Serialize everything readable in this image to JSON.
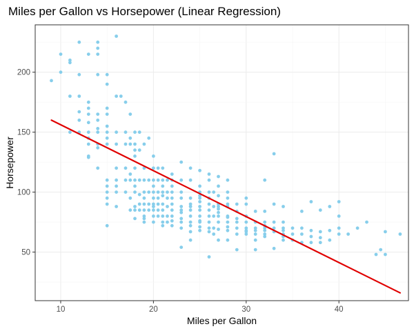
{
  "chart_data": {
    "type": "scatter",
    "title": "Miles per Gallon vs Horsepower (Linear Regression)",
    "xlabel": "Miles per Gallon",
    "ylabel": "Horsepower",
    "xlim": [
      7.25,
      47.5
    ],
    "ylim": [
      9.5,
      239.5
    ],
    "x_ticks": [
      10,
      20,
      30,
      40
    ],
    "y_ticks": [
      50,
      100,
      150,
      200
    ],
    "grid": true,
    "point_color": "#87CEEB",
    "line_color": "#E00000",
    "regression_line": {
      "x": [
        9,
        46.6
      ],
      "y": [
        160,
        16
      ]
    },
    "points": [
      [
        9,
        193
      ],
      [
        10,
        215
      ],
      [
        10,
        200
      ],
      [
        11,
        210
      ],
      [
        11,
        208
      ],
      [
        11,
        180
      ],
      [
        11,
        150
      ],
      [
        12,
        225
      ],
      [
        12,
        198
      ],
      [
        12,
        180
      ],
      [
        12,
        167
      ],
      [
        12,
        160
      ],
      [
        12,
        150
      ],
      [
        13,
        215
      ],
      [
        13,
        175
      ],
      [
        13,
        170
      ],
      [
        13,
        165
      ],
      [
        13,
        158
      ],
      [
        13,
        150
      ],
      [
        13,
        145
      ],
      [
        13,
        140
      ],
      [
        13,
        130
      ],
      [
        13,
        129
      ],
      [
        14,
        225
      ],
      [
        14,
        220
      ],
      [
        14,
        215
      ],
      [
        14,
        198
      ],
      [
        14,
        165
      ],
      [
        14,
        160
      ],
      [
        14,
        153
      ],
      [
        14,
        150
      ],
      [
        14,
        140
      ],
      [
        14,
        137
      ],
      [
        14,
        120
      ],
      [
        15,
        198
      ],
      [
        15,
        190
      ],
      [
        15,
        170
      ],
      [
        15,
        165
      ],
      [
        15,
        155
      ],
      [
        15,
        150
      ],
      [
        15,
        145
      ],
      [
        15,
        140
      ],
      [
        15,
        110
      ],
      [
        15,
        105
      ],
      [
        15,
        100
      ],
      [
        15,
        95
      ],
      [
        15,
        90
      ],
      [
        15,
        72
      ],
      [
        16,
        230
      ],
      [
        16,
        180
      ],
      [
        16,
        150
      ],
      [
        16,
        140
      ],
      [
        16,
        120
      ],
      [
        16,
        105
      ],
      [
        16,
        100
      ],
      [
        16,
        88
      ],
      [
        16,
        110
      ],
      [
        16.5,
        180
      ],
      [
        17,
        175
      ],
      [
        17,
        150
      ],
      [
        17,
        140
      ],
      [
        17,
        120
      ],
      [
        17,
        110
      ],
      [
        17,
        100
      ],
      [
        17.5,
        165
      ],
      [
        17.5,
        145
      ],
      [
        17.5,
        140
      ],
      [
        17.5,
        115
      ],
      [
        17.5,
        110
      ],
      [
        17.5,
        95
      ],
      [
        17.5,
        85
      ],
      [
        18,
        150
      ],
      [
        18,
        140
      ],
      [
        18,
        135
      ],
      [
        18,
        130
      ],
      [
        18,
        120
      ],
      [
        18,
        110
      ],
      [
        18,
        105
      ],
      [
        18,
        100
      ],
      [
        18,
        88
      ],
      [
        18,
        85
      ],
      [
        18,
        78
      ],
      [
        18.5,
        150
      ],
      [
        18.5,
        135
      ],
      [
        18.5,
        110
      ],
      [
        18.5,
        98
      ],
      [
        18.5,
        90
      ],
      [
        18.5,
        85
      ],
      [
        19,
        140
      ],
      [
        19,
        120
      ],
      [
        19,
        110
      ],
      [
        19,
        100
      ],
      [
        19,
        95
      ],
      [
        19,
        90
      ],
      [
        19,
        85
      ],
      [
        19,
        80
      ],
      [
        19,
        78
      ],
      [
        19,
        75
      ],
      [
        19.5,
        145
      ],
      [
        19.5,
        110
      ],
      [
        19.5,
        100
      ],
      [
        19.5,
        90
      ],
      [
        19.5,
        85
      ],
      [
        20,
        130
      ],
      [
        20,
        120
      ],
      [
        20,
        110
      ],
      [
        20,
        105
      ],
      [
        20,
        100
      ],
      [
        20,
        95
      ],
      [
        20,
        90
      ],
      [
        20,
        88
      ],
      [
        20,
        85
      ],
      [
        20,
        80
      ],
      [
        20,
        75
      ],
      [
        20.5,
        120
      ],
      [
        20.5,
        110
      ],
      [
        20.5,
        100
      ],
      [
        20.5,
        95
      ],
      [
        20.5,
        90
      ],
      [
        20.5,
        85
      ],
      [
        20.5,
        80
      ],
      [
        21,
        120
      ],
      [
        21,
        110
      ],
      [
        21,
        105
      ],
      [
        21,
        100
      ],
      [
        21,
        97
      ],
      [
        21,
        90
      ],
      [
        21,
        85
      ],
      [
        21,
        80
      ],
      [
        21,
        75
      ],
      [
        21,
        72
      ],
      [
        21.5,
        110
      ],
      [
        21.5,
        100
      ],
      [
        21.5,
        95
      ],
      [
        21.5,
        88
      ],
      [
        21.5,
        80
      ],
      [
        21.5,
        75
      ],
      [
        22,
        115
      ],
      [
        22,
        110
      ],
      [
        22,
        105
      ],
      [
        22,
        100
      ],
      [
        22,
        95
      ],
      [
        22,
        90
      ],
      [
        22,
        85
      ],
      [
        22,
        80
      ],
      [
        22,
        76
      ],
      [
        22,
        72
      ],
      [
        23,
        125
      ],
      [
        23,
        110
      ],
      [
        23,
        100
      ],
      [
        23,
        95
      ],
      [
        23,
        88
      ],
      [
        23,
        85
      ],
      [
        23,
        83
      ],
      [
        23,
        78
      ],
      [
        23,
        75
      ],
      [
        23,
        70
      ],
      [
        23,
        54
      ],
      [
        24,
        120
      ],
      [
        24,
        110
      ],
      [
        24,
        95
      ],
      [
        24,
        90
      ],
      [
        24,
        88
      ],
      [
        24,
        85
      ],
      [
        24,
        80
      ],
      [
        24,
        75
      ],
      [
        24,
        72
      ],
      [
        24,
        67
      ],
      [
        24,
        60
      ],
      [
        25,
        118
      ],
      [
        25,
        105
      ],
      [
        25,
        100
      ],
      [
        25,
        97
      ],
      [
        25,
        95
      ],
      [
        25,
        92
      ],
      [
        25,
        88
      ],
      [
        25,
        85
      ],
      [
        25,
        80
      ],
      [
        25,
        76
      ],
      [
        25,
        75
      ],
      [
        25,
        71
      ],
      [
        25,
        68
      ],
      [
        26,
        115
      ],
      [
        26,
        110
      ],
      [
        26,
        100
      ],
      [
        26,
        95
      ],
      [
        26,
        90
      ],
      [
        26,
        85
      ],
      [
        26,
        80
      ],
      [
        26,
        75
      ],
      [
        26,
        70
      ],
      [
        26,
        67
      ],
      [
        26,
        46
      ],
      [
        26.5,
        100
      ],
      [
        26.5,
        88
      ],
      [
        26.5,
        80
      ],
      [
        26.5,
        70
      ],
      [
        26.5,
        65
      ],
      [
        27,
        113
      ],
      [
        27,
        105
      ],
      [
        27,
        97
      ],
      [
        27,
        90
      ],
      [
        27,
        88
      ],
      [
        27,
        86
      ],
      [
        27,
        83
      ],
      [
        27,
        80
      ],
      [
        27,
        75
      ],
      [
        27,
        69
      ],
      [
        27,
        60
      ],
      [
        28,
        110
      ],
      [
        28,
        100
      ],
      [
        28,
        95
      ],
      [
        28,
        90
      ],
      [
        28,
        88
      ],
      [
        28,
        80
      ],
      [
        28,
        79
      ],
      [
        28,
        75
      ],
      [
        28,
        71
      ],
      [
        28,
        68
      ],
      [
        28,
        60
      ],
      [
        29,
        90
      ],
      [
        29,
        84
      ],
      [
        29,
        78
      ],
      [
        29,
        75
      ],
      [
        29,
        70
      ],
      [
        29,
        65
      ],
      [
        29,
        52
      ],
      [
        30,
        95
      ],
      [
        30,
        90
      ],
      [
        30,
        80
      ],
      [
        30,
        75
      ],
      [
        30,
        70
      ],
      [
        30,
        68
      ],
      [
        30,
        67
      ],
      [
        30,
        65
      ],
      [
        31,
        84
      ],
      [
        31,
        75
      ],
      [
        31,
        70
      ],
      [
        31,
        68
      ],
      [
        31,
        65
      ],
      [
        31,
        60
      ],
      [
        31,
        52
      ],
      [
        32,
        110
      ],
      [
        32,
        84
      ],
      [
        32,
        75
      ],
      [
        32,
        72
      ],
      [
        32,
        70
      ],
      [
        32,
        68
      ],
      [
        32,
        65
      ],
      [
        32,
        63
      ],
      [
        33,
        132
      ],
      [
        33,
        90
      ],
      [
        33,
        75
      ],
      [
        33,
        70
      ],
      [
        33,
        67
      ],
      [
        33,
        53
      ],
      [
        34,
        88
      ],
      [
        34,
        75
      ],
      [
        34,
        70
      ],
      [
        34,
        68
      ],
      [
        34,
        65
      ],
      [
        34,
        63
      ],
      [
        34,
        60
      ],
      [
        35,
        70
      ],
      [
        35,
        65
      ],
      [
        35,
        60
      ],
      [
        36,
        84
      ],
      [
        36,
        70
      ],
      [
        36,
        65
      ],
      [
        36,
        58
      ],
      [
        37,
        92
      ],
      [
        37,
        68
      ],
      [
        37,
        63
      ],
      [
        37,
        58
      ],
      [
        38,
        85
      ],
      [
        38,
        67
      ],
      [
        38,
        62
      ],
      [
        38,
        58
      ],
      [
        39,
        88
      ],
      [
        39,
        68
      ],
      [
        39,
        60
      ],
      [
        40,
        92
      ],
      [
        40,
        80
      ],
      [
        40,
        70
      ],
      [
        40,
        65
      ],
      [
        41,
        65
      ],
      [
        42,
        70
      ],
      [
        43,
        75
      ],
      [
        44,
        48
      ],
      [
        44.5,
        52
      ],
      [
        45,
        67
      ],
      [
        45,
        48
      ],
      [
        46.6,
        65
      ]
    ]
  }
}
